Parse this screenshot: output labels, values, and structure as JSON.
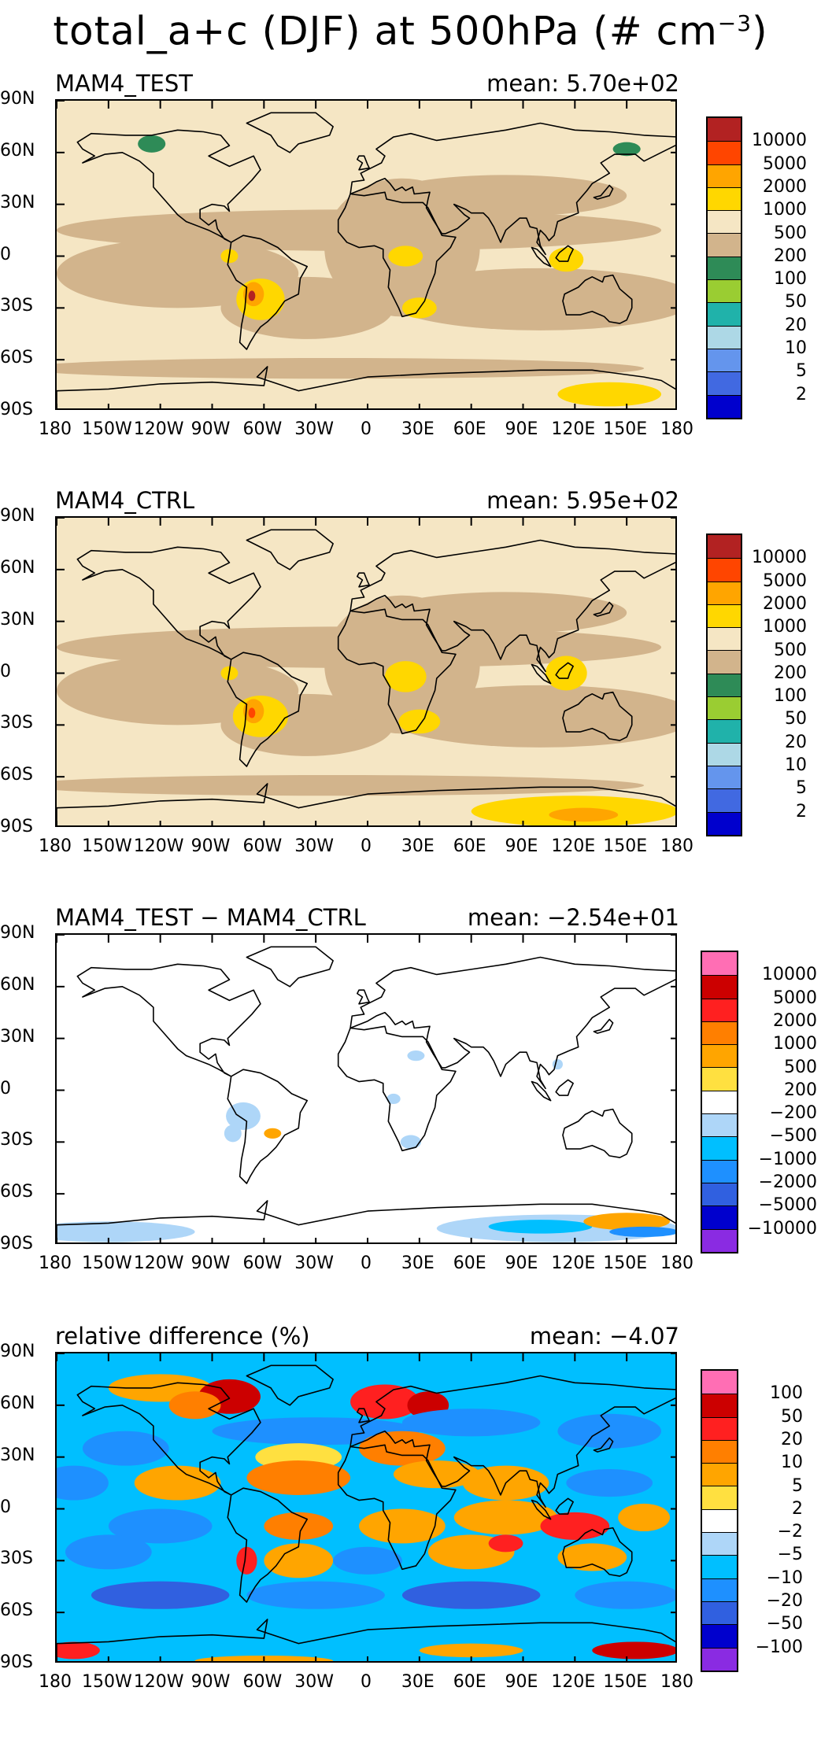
{
  "figure": {
    "title_main": "total_a+c (DJF) at 500hPa (# cm",
    "title_exp": "−3",
    "title_close": ")"
  },
  "axes": {
    "lat_ticks": [
      "90N",
      "60N",
      "30N",
      "0",
      "30S",
      "60S",
      "90S"
    ],
    "lon_ticks": [
      "180",
      "150W",
      "120W",
      "90W",
      "60W",
      "30W",
      "0",
      "30E",
      "60E",
      "90E",
      "120E",
      "150E",
      "180"
    ]
  },
  "panels": [
    {
      "name": "MAM4_TEST",
      "mean": "mean: 5.70e+02",
      "levels": [
        "10000",
        "5000",
        "2000",
        "1000",
        "500",
        "200",
        "100",
        "50",
        "20",
        "10",
        "5",
        "2"
      ],
      "colors": [
        "#b22222",
        "#ff4500",
        "#ffa500",
        "#ffd700",
        "#f5e6c4",
        "#d2b48c",
        "#2e8b57",
        "#9acd32",
        "#20b2aa",
        "#add8e6",
        "#6495ed",
        "#4169e1",
        "#0000cd"
      ]
    },
    {
      "name": "MAM4_CTRL",
      "mean": "mean: 5.95e+02",
      "levels": [
        "10000",
        "5000",
        "2000",
        "1000",
        "500",
        "200",
        "100",
        "50",
        "20",
        "10",
        "5",
        "2"
      ],
      "colors": [
        "#b22222",
        "#ff4500",
        "#ffa500",
        "#ffd700",
        "#f5e6c4",
        "#d2b48c",
        "#2e8b57",
        "#9acd32",
        "#20b2aa",
        "#add8e6",
        "#6495ed",
        "#4169e1",
        "#0000cd"
      ]
    },
    {
      "name": "MAM4_TEST − MAM4_CTRL",
      "mean": "mean: −2.54e+01",
      "levels": [
        "10000",
        "5000",
        "2000",
        "1000",
        "500",
        "200",
        "−200",
        "−500",
        "−1000",
        "−2000",
        "−5000",
        "−10000"
      ],
      "colors": [
        "#ff6eb4",
        "#cc0000",
        "#ff2020",
        "#ff7f00",
        "#ffa500",
        "#ffe040",
        "#ffffff",
        "#aed6f8",
        "#00bfff",
        "#1e90ff",
        "#3060e0",
        "#0000cd",
        "#8a2be2"
      ]
    },
    {
      "name": "relative difference (%)",
      "mean": "mean: −4.07",
      "levels": [
        "100",
        "50",
        "20",
        "10",
        "5",
        "2",
        "−2",
        "−5",
        "−10",
        "−20",
        "−50",
        "−100"
      ],
      "colors": [
        "#ff6eb4",
        "#cc0000",
        "#ff2020",
        "#ff7f00",
        "#ffa500",
        "#ffe040",
        "#ffffff",
        "#aed6f8",
        "#00bfff",
        "#1e90ff",
        "#3060e0",
        "#0000cd",
        "#8a2be2"
      ]
    }
  ]
}
